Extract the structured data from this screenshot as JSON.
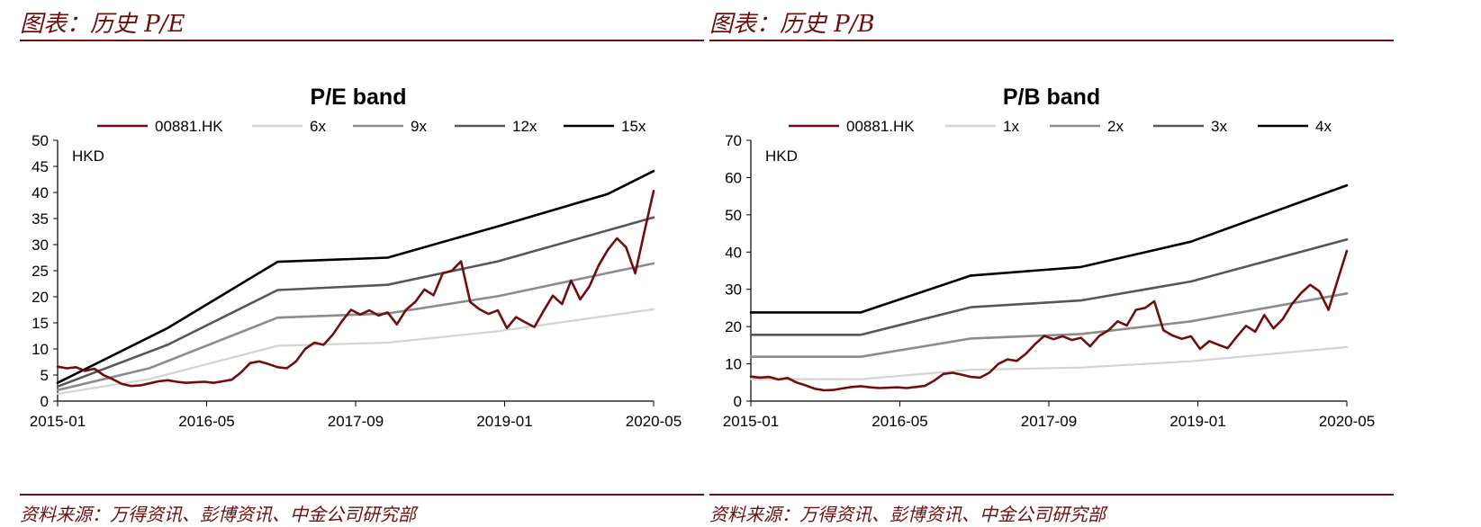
{
  "colors": {
    "stock": "#6e0e0e",
    "band1": "#d3d3d3",
    "band2": "#8c8c8c",
    "band3": "#575757",
    "band4": "#000000",
    "accent": "#6e0e0e"
  },
  "left": {
    "heading": "图表：历史 P/E",
    "source": "资料来源：万得资讯、彭博资讯、中金公司研究部"
  },
  "right": {
    "heading": "图表：历史 P/B",
    "source": "资料来源：万得资讯、彭博资讯、中金公司研究部"
  },
  "chart_data": [
    {
      "type": "line",
      "title": "P/E band",
      "unit_label": "HKD",
      "ylim": [
        0,
        50
      ],
      "yticks": [
        0,
        5,
        10,
        15,
        20,
        25,
        30,
        35,
        40,
        45,
        50
      ],
      "x_range": [
        0,
        64
      ],
      "xticks": [
        {
          "label": "2015-01",
          "x": 0
        },
        {
          "label": "2016-05",
          "x": 16
        },
        {
          "label": "2017-09",
          "x": 32
        },
        {
          "label": "2019-01",
          "x": 48
        },
        {
          "label": "2020-05",
          "x": 64
        }
      ],
      "legend": [
        "00881.HK",
        "6x",
        "9x",
        "12x",
        "15x"
      ],
      "series": [
        {
          "name": "00881.HK",
          "points": [
            [
              0,
              6.6
            ],
            [
              1,
              6.3
            ],
            [
              2,
              6.5
            ],
            [
              3,
              5.8
            ],
            [
              4,
              6.2
            ],
            [
              5,
              5.0
            ],
            [
              6,
              4.2
            ],
            [
              7,
              3.3
            ],
            [
              8,
              2.9
            ],
            [
              9,
              3.0
            ],
            [
              10,
              3.4
            ],
            [
              11,
              3.8
            ],
            [
              12,
              4.0
            ],
            [
              13,
              3.7
            ],
            [
              14,
              3.5
            ],
            [
              15,
              3.6
            ],
            [
              16,
              3.7
            ],
            [
              17,
              3.5
            ],
            [
              18,
              3.8
            ],
            [
              19,
              4.1
            ],
            [
              20,
              5.5
            ],
            [
              21,
              7.3
            ],
            [
              22,
              7.6
            ],
            [
              23,
              7.1
            ],
            [
              24,
              6.5
            ],
            [
              25,
              6.3
            ],
            [
              26,
              7.6
            ],
            [
              27,
              10.0
            ],
            [
              28,
              11.2
            ],
            [
              29,
              10.8
            ],
            [
              30,
              12.7
            ],
            [
              31,
              15.3
            ],
            [
              32,
              17.5
            ],
            [
              33,
              16.6
            ],
            [
              34,
              17.4
            ],
            [
              35,
              16.4
            ],
            [
              36,
              17.0
            ],
            [
              37,
              14.7
            ],
            [
              38,
              17.5
            ],
            [
              39,
              19.0
            ],
            [
              40,
              21.4
            ],
            [
              41,
              20.3
            ],
            [
              42,
              24.5
            ],
            [
              43,
              25.0
            ],
            [
              44,
              26.8
            ],
            [
              45,
              19.0
            ],
            [
              46,
              17.6
            ],
            [
              47,
              16.7
            ],
            [
              48,
              17.4
            ],
            [
              49,
              14.0
            ],
            [
              50,
              16.1
            ],
            [
              51,
              15.1
            ],
            [
              52,
              14.2
            ],
            [
              53,
              17.3
            ],
            [
              54,
              20.2
            ],
            [
              55,
              18.6
            ],
            [
              56,
              23.1
            ],
            [
              57,
              19.5
            ],
            [
              58,
              22.0
            ],
            [
              59,
              26.0
            ],
            [
              60,
              29.0
            ],
            [
              61,
              31.2
            ],
            [
              62,
              29.5
            ],
            [
              63,
              24.5
            ],
            [
              64,
              32.5
            ],
            [
              65,
              40.3
            ]
          ]
        },
        {
          "name": "6x",
          "points": [
            [
              0,
              1.4
            ],
            [
              10,
              4.2
            ],
            [
              24,
              10.6
            ],
            [
              36,
              11.2
            ],
            [
              48,
              13.4
            ],
            [
              65,
              17.6
            ]
          ]
        },
        {
          "name": "9x",
          "points": [
            [
              0,
              2.1
            ],
            [
              10,
              6.3
            ],
            [
              24,
              16.0
            ],
            [
              36,
              16.8
            ],
            [
              48,
              20.1
            ],
            [
              65,
              26.4
            ]
          ]
        },
        {
          "name": "12x",
          "points": [
            [
              0,
              2.8
            ],
            [
              12,
              10.8
            ],
            [
              24,
              21.3
            ],
            [
              36,
              22.3
            ],
            [
              48,
              26.8
            ],
            [
              65,
              35.2
            ]
          ]
        },
        {
          "name": "15x",
          "points": [
            [
              0,
              3.5
            ],
            [
              12,
              14.0
            ],
            [
              24,
              26.7
            ],
            [
              36,
              27.5
            ],
            [
              48,
              33.5
            ],
            [
              60,
              39.7
            ],
            [
              65,
              44.1
            ]
          ]
        }
      ]
    },
    {
      "type": "line",
      "title": "P/B band",
      "unit_label": "HKD",
      "ylim": [
        0,
        70
      ],
      "yticks": [
        0,
        10,
        20,
        30,
        40,
        50,
        60,
        70
      ],
      "x_range": [
        0,
        64
      ],
      "xticks": [
        {
          "label": "2015-01",
          "x": 0
        },
        {
          "label": "2016-05",
          "x": 16
        },
        {
          "label": "2017-09",
          "x": 32
        },
        {
          "label": "2019-01",
          "x": 48
        },
        {
          "label": "2020-05",
          "x": 64
        }
      ],
      "legend": [
        "00881.HK",
        "1x",
        "2x",
        "3x",
        "4x"
      ],
      "series": [
        {
          "name": "00881.HK",
          "points": [
            [
              0,
              6.6
            ],
            [
              1,
              6.3
            ],
            [
              2,
              6.5
            ],
            [
              3,
              5.8
            ],
            [
              4,
              6.2
            ],
            [
              5,
              5.0
            ],
            [
              6,
              4.2
            ],
            [
              7,
              3.3
            ],
            [
              8,
              2.9
            ],
            [
              9,
              3.0
            ],
            [
              10,
              3.4
            ],
            [
              11,
              3.8
            ],
            [
              12,
              4.0
            ],
            [
              13,
              3.7
            ],
            [
              14,
              3.5
            ],
            [
              15,
              3.6
            ],
            [
              16,
              3.7
            ],
            [
              17,
              3.5
            ],
            [
              18,
              3.8
            ],
            [
              19,
              4.1
            ],
            [
              20,
              5.5
            ],
            [
              21,
              7.3
            ],
            [
              22,
              7.6
            ],
            [
              23,
              7.1
            ],
            [
              24,
              6.5
            ],
            [
              25,
              6.3
            ],
            [
              26,
              7.6
            ],
            [
              27,
              10.0
            ],
            [
              28,
              11.2
            ],
            [
              29,
              10.8
            ],
            [
              30,
              12.7
            ],
            [
              31,
              15.3
            ],
            [
              32,
              17.5
            ],
            [
              33,
              16.6
            ],
            [
              34,
              17.4
            ],
            [
              35,
              16.4
            ],
            [
              36,
              17.0
            ],
            [
              37,
              14.7
            ],
            [
              38,
              17.5
            ],
            [
              39,
              19.0
            ],
            [
              40,
              21.4
            ],
            [
              41,
              20.3
            ],
            [
              42,
              24.5
            ],
            [
              43,
              25.0
            ],
            [
              44,
              26.8
            ],
            [
              45,
              19.0
            ],
            [
              46,
              17.6
            ],
            [
              47,
              16.7
            ],
            [
              48,
              17.4
            ],
            [
              49,
              14.0
            ],
            [
              50,
              16.1
            ],
            [
              51,
              15.1
            ],
            [
              52,
              14.2
            ],
            [
              53,
              17.3
            ],
            [
              54,
              20.2
            ],
            [
              55,
              18.6
            ],
            [
              56,
              23.1
            ],
            [
              57,
              19.5
            ],
            [
              58,
              22.0
            ],
            [
              59,
              26.0
            ],
            [
              60,
              29.0
            ],
            [
              61,
              31.2
            ],
            [
              62,
              29.5
            ],
            [
              63,
              24.5
            ],
            [
              64,
              32.5
            ],
            [
              65,
              40.3
            ]
          ]
        },
        {
          "name": "1x",
          "points": [
            [
              0,
              5.9
            ],
            [
              12,
              5.9
            ],
            [
              24,
              8.4
            ],
            [
              36,
              9.0
            ],
            [
              48,
              10.7
            ],
            [
              65,
              14.5
            ]
          ]
        },
        {
          "name": "2x",
          "points": [
            [
              0,
              11.9
            ],
            [
              12,
              11.9
            ],
            [
              24,
              16.8
            ],
            [
              36,
              18.0
            ],
            [
              48,
              21.4
            ],
            [
              65,
              28.9
            ]
          ]
        },
        {
          "name": "3x",
          "points": [
            [
              0,
              17.8
            ],
            [
              12,
              17.8
            ],
            [
              24,
              25.2
            ],
            [
              36,
              27.0
            ],
            [
              48,
              32.1
            ],
            [
              65,
              43.4
            ]
          ]
        },
        {
          "name": "4x",
          "points": [
            [
              0,
              23.8
            ],
            [
              12,
              23.8
            ],
            [
              24,
              33.7
            ],
            [
              36,
              36.0
            ],
            [
              48,
              42.8
            ],
            [
              65,
              57.9
            ]
          ]
        }
      ]
    }
  ]
}
